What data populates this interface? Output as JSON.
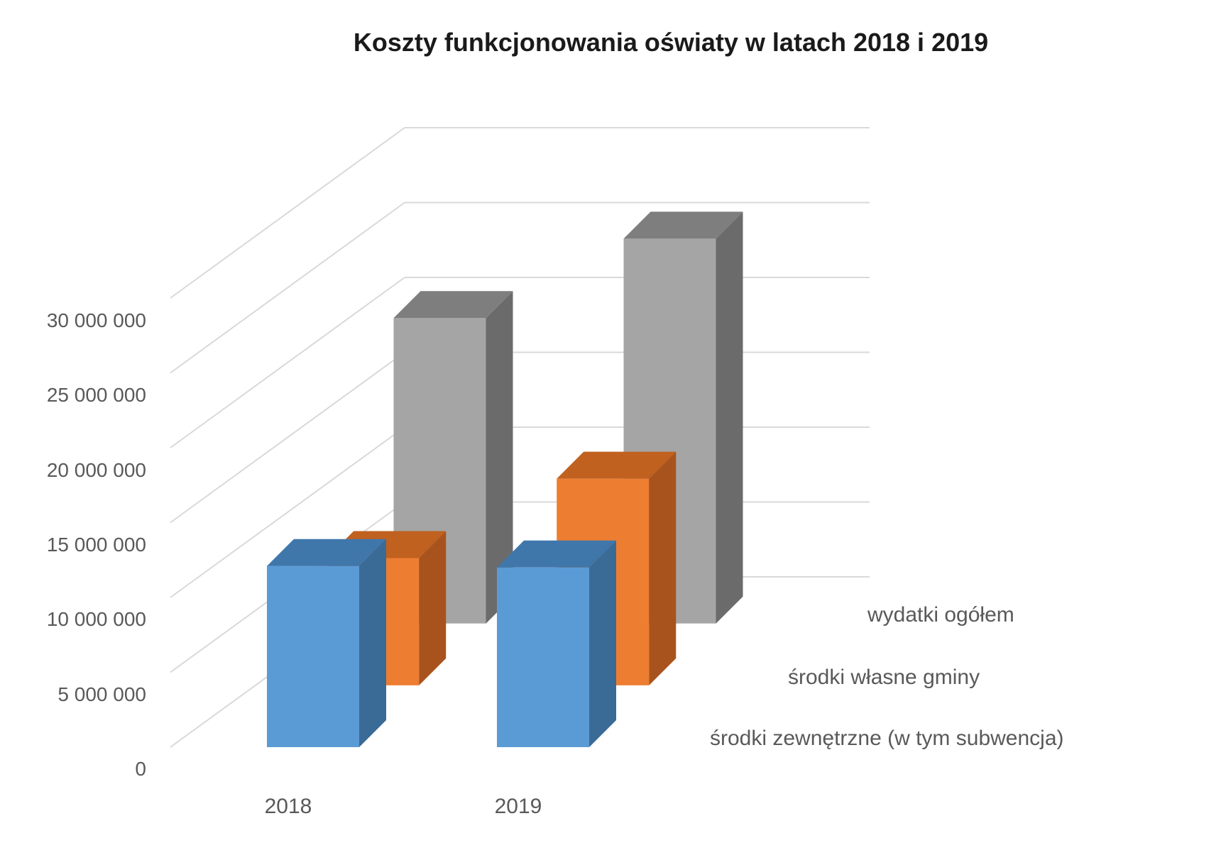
{
  "chart_data": {
    "type": "bar",
    "title": "Koszty funkcjonowania oświaty w latach 2018 i 2019",
    "categories": [
      "2018",
      "2019"
    ],
    "series": [
      {
        "name": "środki zewnętrzne (w tym subwencja)",
        "values": [
          12100000,
          12000000
        ]
      },
      {
        "name": "środki własne gminy",
        "values": [
          8500000,
          13800000
        ]
      },
      {
        "name": "wydatki ogółem",
        "values": [
          20400000,
          25700000
        ]
      }
    ],
    "yticks": [
      "0",
      "5 000 000",
      "10 000 000",
      "15 000 000",
      "20 000 000",
      "25 000 000",
      "30 000 000"
    ],
    "ylim": [
      0,
      30000000
    ],
    "grid": true,
    "legend": "none",
    "colors": {
      "series": [
        "#5b9bd5",
        "#ed7d31",
        "#a5a5a5"
      ],
      "side": [
        "#3a6a96",
        "#a8531d",
        "#6b6b6b"
      ],
      "top": [
        "#3f77ab",
        "#c0611f",
        "#7e7e7e"
      ],
      "grid": "#d9d9d9"
    }
  }
}
